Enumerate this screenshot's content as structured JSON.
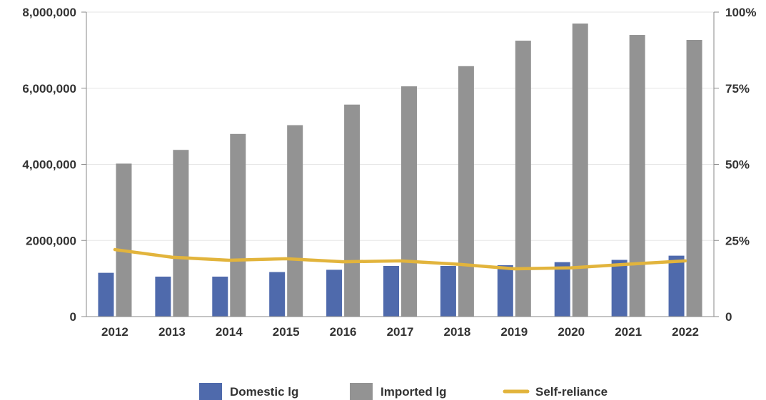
{
  "chart_data": {
    "type": "bar",
    "categories": [
      "2012",
      "2013",
      "2014",
      "2015",
      "2016",
      "2017",
      "2018",
      "2019",
      "2020",
      "2021",
      "2022"
    ],
    "series": [
      {
        "name": "Domestic lg",
        "kind": "bar",
        "axis": "left",
        "color": "#4f6aac",
        "values": [
          1150000,
          1050000,
          1050000,
          1170000,
          1230000,
          1330000,
          1330000,
          1350000,
          1430000,
          1490000,
          1600000
        ]
      },
      {
        "name": "Imported lg",
        "kind": "bar",
        "axis": "left",
        "color": "#939393",
        "values": [
          4020000,
          4380000,
          4800000,
          5030000,
          5570000,
          6050000,
          6580000,
          7250000,
          7700000,
          7400000,
          7270000
        ]
      },
      {
        "name": "Self-reliance",
        "kind": "line",
        "axis": "right",
        "color": "#e2b43c",
        "values": [
          0.22,
          0.195,
          0.185,
          0.19,
          0.18,
          0.183,
          0.172,
          0.157,
          0.16,
          0.172,
          0.183
        ]
      }
    ],
    "left_axis": {
      "ylim": [
        0,
        8000000
      ],
      "tick_values": [
        0,
        2000000,
        4000000,
        6000000,
        8000000
      ],
      "tick_labels": [
        "0",
        "2000,000",
        "4,000,000",
        "6,000,000",
        "8,000,000"
      ]
    },
    "right_axis": {
      "ylim": [
        0,
        1
      ],
      "tick_values": [
        0,
        0.25,
        0.5,
        0.75,
        1
      ],
      "tick_labels": [
        "0",
        "25%",
        "50%",
        "75%",
        "100%"
      ]
    },
    "grid": true,
    "legend_position": "bottom-center"
  }
}
